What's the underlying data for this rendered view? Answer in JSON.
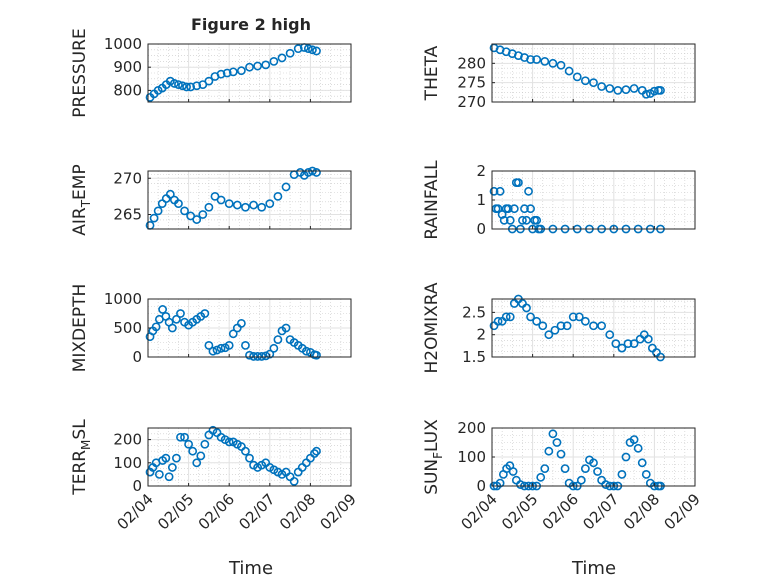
{
  "figure": {
    "title": "Figure 2 high",
    "time_label": "Time",
    "date_ticks": [
      "02/04",
      "02/05",
      "02/06",
      "02/07",
      "02/08",
      "02/09"
    ],
    "marker_color": "#0072BD",
    "grid": true
  },
  "chart_data": [
    {
      "type": "scatter",
      "ylabel": "PRESSURE",
      "xlim": [
        0,
        5
      ],
      "ylim": [
        750,
        1000
      ],
      "yticks": [
        800,
        900,
        1000
      ],
      "x": [
        0.05,
        0.15,
        0.25,
        0.35,
        0.45,
        0.55,
        0.65,
        0.75,
        0.85,
        0.95,
        1.05,
        1.2,
        1.35,
        1.5,
        1.65,
        1.8,
        1.95,
        2.1,
        2.3,
        2.5,
        2.7,
        2.9,
        3.1,
        3.3,
        3.5,
        3.7,
        3.85,
        3.95,
        4.05,
        4.15
      ],
      "y": [
        770,
        785,
        800,
        810,
        825,
        840,
        830,
        825,
        820,
        815,
        815,
        820,
        825,
        840,
        860,
        870,
        875,
        880,
        885,
        900,
        905,
        910,
        925,
        940,
        960,
        980,
        985,
        980,
        975,
        970
      ]
    },
    {
      "type": "scatter",
      "ylabel": "THETA",
      "xlim": [
        0,
        5
      ],
      "ylim": [
        270,
        285
      ],
      "yticks": [
        270,
        275,
        280
      ],
      "x": [
        0.05,
        0.2,
        0.35,
        0.5,
        0.65,
        0.8,
        0.95,
        1.1,
        1.3,
        1.5,
        1.7,
        1.9,
        2.1,
        2.3,
        2.5,
        2.7,
        2.9,
        3.1,
        3.3,
        3.5,
        3.7,
        3.8,
        3.9,
        4.0,
        4.1,
        4.15
      ],
      "y": [
        284,
        283.5,
        283,
        282.5,
        282,
        281.5,
        281,
        281,
        280.5,
        280,
        279.5,
        278,
        276.5,
        275.5,
        275,
        274,
        273.5,
        273,
        273.2,
        273.5,
        273,
        272,
        272.2,
        272.8,
        273,
        273
      ]
    },
    {
      "type": "scatter",
      "ylabel": "AIR_TEMP",
      "xlim": [
        0,
        5
      ],
      "ylim": [
        263,
        271
      ],
      "yticks": [
        265,
        270
      ],
      "x": [
        0.05,
        0.15,
        0.25,
        0.35,
        0.45,
        0.55,
        0.65,
        0.75,
        0.9,
        1.05,
        1.2,
        1.35,
        1.5,
        1.65,
        1.8,
        2.0,
        2.2,
        2.4,
        2.6,
        2.8,
        3.0,
        3.2,
        3.4,
        3.6,
        3.75,
        3.85,
        3.95,
        4.05,
        4.15
      ],
      "y": [
        263.5,
        264.5,
        265.5,
        266.5,
        267.2,
        267.8,
        267,
        266.5,
        265.5,
        264.8,
        264.3,
        265,
        266,
        267.5,
        267,
        266.5,
        266.3,
        266,
        266.3,
        266,
        266.5,
        267.5,
        268.8,
        270.5,
        270.8,
        270.4,
        270.8,
        271,
        270.8
      ]
    },
    {
      "type": "scatter",
      "ylabel": "RAINFALL",
      "xlim": [
        0,
        5
      ],
      "ylim": [
        0,
        2
      ],
      "yticks": [
        0,
        1,
        2
      ],
      "x": [
        0.05,
        0.1,
        0.15,
        0.2,
        0.25,
        0.3,
        0.35,
        0.4,
        0.45,
        0.5,
        0.55,
        0.6,
        0.65,
        0.7,
        0.75,
        0.8,
        0.85,
        0.9,
        0.95,
        1.0,
        1.05,
        1.1,
        1.15,
        1.2,
        1.5,
        1.8,
        2.1,
        2.4,
        2.7,
        3.0,
        3.3,
        3.6,
        3.9,
        4.15
      ],
      "y": [
        1.3,
        0.7,
        0.7,
        1.3,
        0.5,
        0.3,
        0.7,
        0.7,
        0.3,
        0,
        0.7,
        1.6,
        1.6,
        0,
        0.3,
        0.7,
        0.3,
        1.3,
        0.7,
        0,
        0.3,
        0.3,
        0,
        0,
        0,
        0,
        0,
        0,
        0,
        0,
        0,
        0,
        0,
        0
      ]
    },
    {
      "type": "scatter",
      "ylabel": "MIXDEPTH",
      "xlim": [
        0,
        5
      ],
      "ylim": [
        0,
        1000
      ],
      "yticks": [
        0,
        500,
        1000
      ],
      "x": [
        0.05,
        0.12,
        0.2,
        0.28,
        0.36,
        0.44,
        0.52,
        0.6,
        0.7,
        0.8,
        0.9,
        1.0,
        1.1,
        1.2,
        1.3,
        1.4,
        1.5,
        1.6,
        1.7,
        1.8,
        1.9,
        2.0,
        2.1,
        2.2,
        2.3,
        2.4,
        2.5,
        2.6,
        2.7,
        2.8,
        2.9,
        3.0,
        3.1,
        3.2,
        3.3,
        3.4,
        3.5,
        3.6,
        3.7,
        3.8,
        3.9,
        4.0,
        4.1,
        4.15
      ],
      "y": [
        350,
        450,
        520,
        650,
        820,
        700,
        600,
        500,
        650,
        750,
        600,
        550,
        600,
        650,
        700,
        750,
        200,
        100,
        120,
        150,
        160,
        200,
        400,
        500,
        580,
        200,
        30,
        10,
        10,
        10,
        20,
        50,
        150,
        300,
        450,
        500,
        300,
        250,
        200,
        150,
        100,
        80,
        40,
        30
      ]
    },
    {
      "type": "scatter",
      "ylabel": "H2OMIXRA",
      "xlim": [
        0,
        5
      ],
      "ylim": [
        1.5,
        2.8
      ],
      "yticks": [
        1.5,
        2,
        2.5
      ],
      "x": [
        0.05,
        0.15,
        0.25,
        0.35,
        0.45,
        0.55,
        0.65,
        0.75,
        0.85,
        0.95,
        1.1,
        1.25,
        1.4,
        1.55,
        1.7,
        1.85,
        2.0,
        2.15,
        2.3,
        2.5,
        2.7,
        2.9,
        3.05,
        3.2,
        3.35,
        3.5,
        3.65,
        3.75,
        3.85,
        3.95,
        4.05,
        4.15
      ],
      "y": [
        2.2,
        2.3,
        2.3,
        2.4,
        2.4,
        2.7,
        2.8,
        2.7,
        2.6,
        2.4,
        2.3,
        2.2,
        2.0,
        2.1,
        2.2,
        2.2,
        2.4,
        2.4,
        2.3,
        2.2,
        2.2,
        2.0,
        1.8,
        1.7,
        1.8,
        1.8,
        1.9,
        2.0,
        1.9,
        1.7,
        1.6,
        1.5
      ]
    },
    {
      "type": "scatter",
      "ylabel": "TERR_MSL",
      "xlim": [
        0,
        5
      ],
      "ylim": [
        0,
        250
      ],
      "yticks": [
        0,
        100,
        200
      ],
      "x": [
        0.05,
        0.12,
        0.2,
        0.28,
        0.36,
        0.44,
        0.52,
        0.6,
        0.7,
        0.8,
        0.9,
        1.0,
        1.1,
        1.2,
        1.3,
        1.4,
        1.5,
        1.6,
        1.7,
        1.8,
        1.9,
        2.0,
        2.1,
        2.2,
        2.3,
        2.4,
        2.5,
        2.6,
        2.7,
        2.8,
        2.9,
        3.0,
        3.1,
        3.2,
        3.3,
        3.4,
        3.5,
        3.6,
        3.7,
        3.8,
        3.9,
        4.0,
        4.1,
        4.15
      ],
      "y": [
        60,
        80,
        100,
        50,
        110,
        120,
        40,
        80,
        120,
        210,
        210,
        180,
        150,
        100,
        130,
        180,
        220,
        240,
        230,
        210,
        200,
        190,
        190,
        180,
        170,
        150,
        120,
        90,
        80,
        90,
        100,
        80,
        70,
        60,
        50,
        60,
        40,
        20,
        60,
        80,
        100,
        120,
        140,
        150
      ]
    },
    {
      "type": "scatter",
      "ylabel": "SUN_FLUX",
      "xlim": [
        0,
        5
      ],
      "ylim": [
        0,
        200
      ],
      "yticks": [
        0,
        100,
        200
      ],
      "x": [
        0.05,
        0.12,
        0.2,
        0.28,
        0.36,
        0.44,
        0.52,
        0.6,
        0.7,
        0.8,
        0.9,
        1.0,
        1.1,
        1.2,
        1.3,
        1.4,
        1.5,
        1.6,
        1.7,
        1.8,
        1.9,
        2.0,
        2.1,
        2.2,
        2.3,
        2.4,
        2.5,
        2.6,
        2.7,
        2.8,
        2.9,
        3.0,
        3.1,
        3.2,
        3.3,
        3.4,
        3.5,
        3.6,
        3.7,
        3.8,
        3.9,
        4.0,
        4.1,
        4.15
      ],
      "y": [
        0,
        0,
        10,
        40,
        60,
        70,
        50,
        20,
        5,
        0,
        0,
        0,
        0,
        30,
        60,
        120,
        180,
        150,
        110,
        60,
        10,
        0,
        0,
        20,
        60,
        90,
        80,
        50,
        20,
        5,
        0,
        0,
        0,
        40,
        100,
        150,
        160,
        130,
        80,
        40,
        10,
        0,
        0,
        0
      ]
    }
  ]
}
